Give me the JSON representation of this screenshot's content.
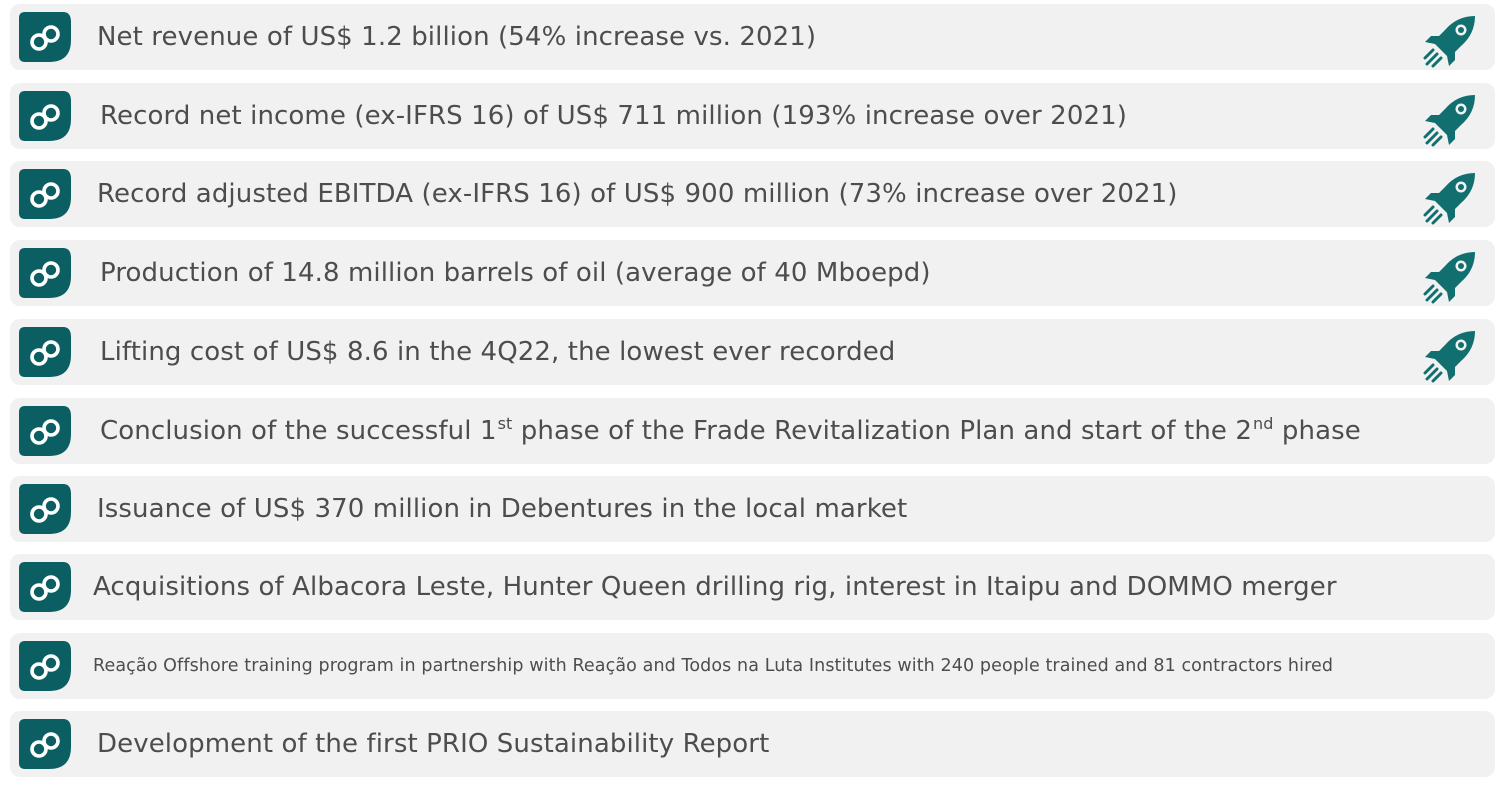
{
  "highlights": [
    {
      "text": "Net revenue of US$ 1.2 billion (54% increase vs. 2021)",
      "icon": "rocket-icon",
      "rocket": true
    },
    {
      "text": "Record net income (ex-IFRS 16) of US$ 711 million (193% increase over 2021)",
      "icon": "rocket-icon",
      "rocket": true
    },
    {
      "text": "Record adjusted EBITDA (ex-IFRS 16) of US$ 900 million (73% increase over 2021)",
      "icon": "rocket-icon",
      "rocket": true
    },
    {
      "text": "Production of 14.8 million barrels of oil (average of 40 Mboepd)",
      "icon": "rocket-icon",
      "rocket": true
    },
    {
      "text": "Lifting cost of US$ 8.6 in the 4Q22, the lowest ever recorded",
      "icon": "rocket-icon",
      "rocket": true
    },
    {
      "text_part1": "Conclusion of the successful 1",
      "sup1": "st",
      "text_part2": " phase of the Frade Revitalization Plan and start of the 2",
      "sup2": "nd",
      "text_part3": " phase",
      "rocket": false
    },
    {
      "text": "Issuance of US$ 370 million in Debentures in the local market",
      "rocket": false
    },
    {
      "text": "Acquisitions of Albacora Leste, Hunter Queen drilling rig, interest in Itaipu and DOMMO merger",
      "rocket": false
    },
    {
      "text": "Reação Offshore training program in partnership with Reação and Todos na Luta Institutes with 240 people trained and 81 contractors hired",
      "rocket": false
    },
    {
      "text": "Development of the first PRIO Sustainability Report",
      "rocket": false
    }
  ],
  "colors": {
    "badge": "#0b5f63",
    "rocket": "#11706f",
    "row_background": "#f1f1f1",
    "text": "#4d4d4d"
  },
  "icons": {
    "badge": "prio-logo-icon",
    "rocket": "rocket-icon"
  }
}
